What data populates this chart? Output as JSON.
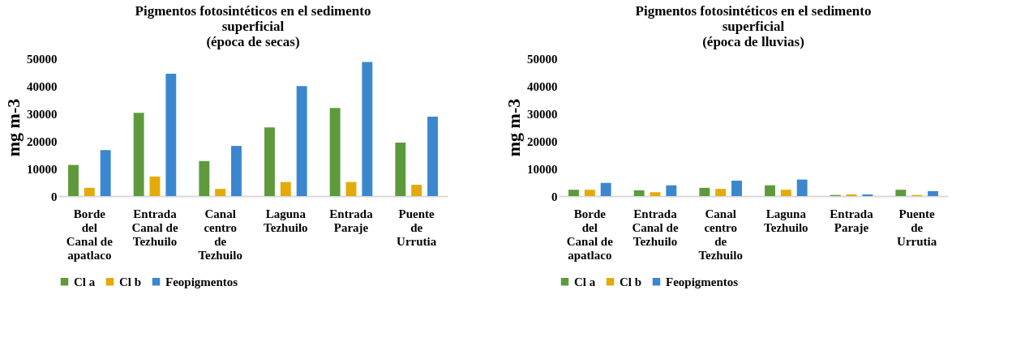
{
  "chart_data": [
    {
      "type": "bar",
      "title": "Pigmentos fotosintéticos en el sedimento\nsuperficial\n(época de secas)",
      "ylabel": "mg m-3",
      "categories": [
        "Borde\ndel\nCanal de\napatlaco",
        "Entrada\nCanal de\nTezhuilo",
        "Canal\ncentro\nde\nTezhuilo",
        "Laguna\nTezhuilo",
        "Entrada\nParaje",
        "Puente\nde\nUrrutia"
      ],
      "series": [
        {
          "name": "Cl a",
          "color": "#5e9a3c",
          "values": [
            11300,
            30200,
            12700,
            24900,
            32000,
            19400
          ]
        },
        {
          "name": "Cl b",
          "color": "#e3aa0a",
          "values": [
            3000,
            7100,
            2600,
            5100,
            5100,
            4100
          ]
        },
        {
          "name": "Feopigmentos",
          "color": "#3b87cf",
          "values": [
            16700,
            44400,
            18200,
            39900,
            48700,
            28800
          ]
        }
      ],
      "ylim": [
        0,
        50000
      ],
      "yticks": [
        0,
        10000,
        20000,
        30000,
        40000,
        50000
      ],
      "grid": false,
      "legend": "bottom"
    },
    {
      "type": "bar",
      "title": "Pigmentos fotosintéticos en el sedimento\nsuperficial\n(época de lluvias)",
      "ylabel": "mg m-3",
      "categories": [
        "Borde\ndel\nCanal de\napatlaco",
        "Entrada\nCanal de\nTezhuilo",
        "Canal\ncentro\nde\nTezhuilo",
        "Laguna\nTezhuilo",
        "Entrada\nParaje",
        "Puente\nde\nUrrutia"
      ],
      "series": [
        {
          "name": "Cl a",
          "color": "#5e9a3c",
          "values": [
            2300,
            2100,
            3000,
            3900,
            400,
            2300
          ]
        },
        {
          "name": "Cl b",
          "color": "#e3aa0a",
          "values": [
            2300,
            1400,
            2600,
            2300,
            600,
            400
          ]
        },
        {
          "name": "Feopigmentos",
          "color": "#3b87cf",
          "values": [
            4800,
            3900,
            5600,
            6000,
            600,
            1800
          ]
        }
      ],
      "ylim": [
        0,
        50000
      ],
      "yticks": [
        0,
        10000,
        20000,
        30000,
        40000,
        50000
      ],
      "grid": false,
      "legend": "bottom"
    }
  ]
}
